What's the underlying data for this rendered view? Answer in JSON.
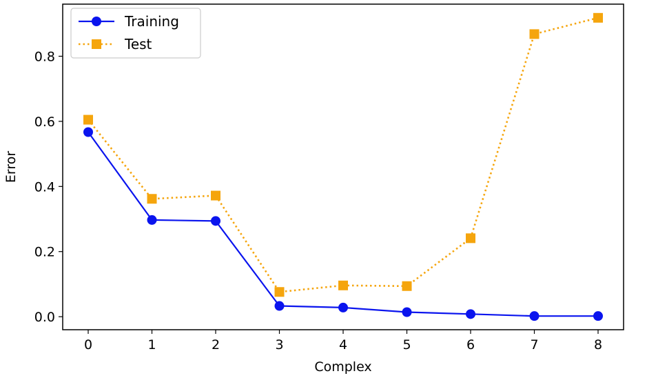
{
  "chart_data": {
    "type": "line",
    "title": "",
    "xlabel": "Complex",
    "ylabel": "Error",
    "x": [
      0,
      1,
      2,
      3,
      4,
      5,
      6,
      7,
      8
    ],
    "xlim": [
      -0.4,
      8.4
    ],
    "ylim": [
      -0.04,
      0.96
    ],
    "xticks": [
      0,
      1,
      2,
      3,
      4,
      5,
      6,
      7,
      8
    ],
    "yticks": [
      0.0,
      0.2,
      0.4,
      0.6,
      0.8
    ],
    "ytick_labels": [
      "0.0",
      "0.2",
      "0.4",
      "0.6",
      "0.8"
    ],
    "grid": false,
    "legend_position": "top-left",
    "series": [
      {
        "name": "Training",
        "color": "#0a14ee",
        "line_style": "solid",
        "marker": "circle",
        "values": [
          0.567,
          0.297,
          0.294,
          0.033,
          0.028,
          0.014,
          0.008,
          0.002,
          0.002
        ]
      },
      {
        "name": "Test",
        "color": "#f5a50d",
        "line_style": "dotted",
        "marker": "square",
        "values": [
          0.605,
          0.362,
          0.372,
          0.076,
          0.096,
          0.094,
          0.241,
          0.868,
          0.918
        ]
      }
    ]
  }
}
